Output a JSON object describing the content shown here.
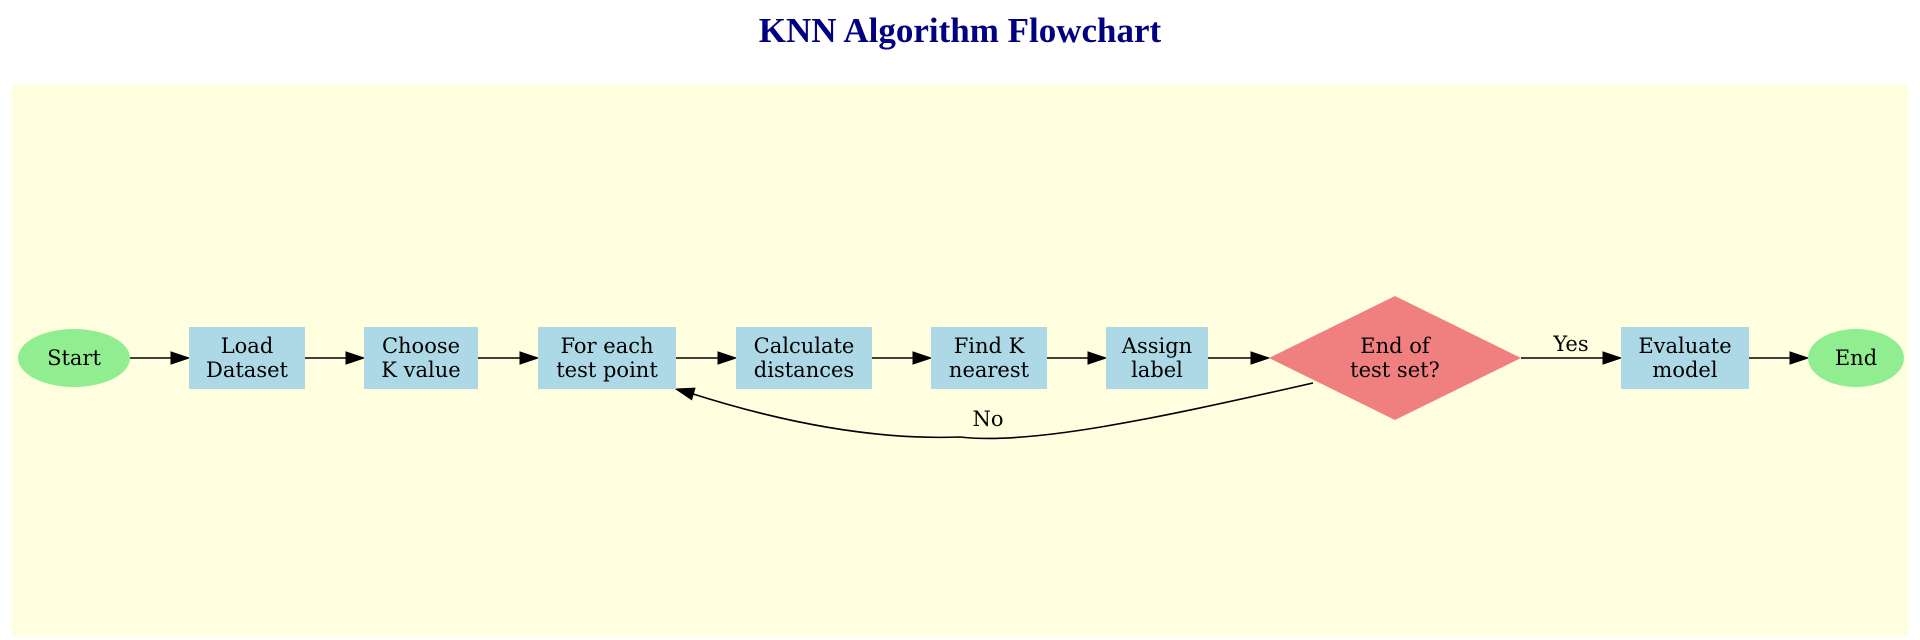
{
  "title": "KNN Algorithm Flowchart",
  "colors": {
    "title": "#000080",
    "cluster_bg": "#ffffe0",
    "terminal": "#90ee90",
    "process": "#add8e6",
    "decision": "#f08080",
    "edge": "#000000"
  },
  "nodes": {
    "start": {
      "label": [
        "Start"
      ],
      "shape": "ellipse"
    },
    "load": {
      "label": [
        "Load",
        "Dataset"
      ],
      "shape": "box"
    },
    "choose": {
      "label": [
        "Choose",
        "K value"
      ],
      "shape": "box"
    },
    "foreach": {
      "label": [
        "For each",
        "test point"
      ],
      "shape": "box"
    },
    "calc": {
      "label": [
        "Calculate",
        "distances"
      ],
      "shape": "box"
    },
    "find": {
      "label": [
        "Find K",
        "nearest"
      ],
      "shape": "box"
    },
    "assign": {
      "label": [
        "Assign",
        "label"
      ],
      "shape": "box"
    },
    "decision": {
      "label": [
        "End of",
        "test set?"
      ],
      "shape": "diamond"
    },
    "evaluate": {
      "label": [
        "Evaluate",
        "model"
      ],
      "shape": "box"
    },
    "end": {
      "label": [
        "End"
      ],
      "shape": "ellipse"
    }
  },
  "edges": [
    {
      "from": "start",
      "to": "load",
      "label": ""
    },
    {
      "from": "load",
      "to": "choose",
      "label": ""
    },
    {
      "from": "choose",
      "to": "foreach",
      "label": ""
    },
    {
      "from": "foreach",
      "to": "calc",
      "label": ""
    },
    {
      "from": "calc",
      "to": "find",
      "label": ""
    },
    {
      "from": "find",
      "to": "assign",
      "label": ""
    },
    {
      "from": "assign",
      "to": "decision",
      "label": ""
    },
    {
      "from": "decision",
      "to": "evaluate",
      "label": "Yes"
    },
    {
      "from": "evaluate",
      "to": "end",
      "label": ""
    },
    {
      "from": "decision",
      "to": "foreach",
      "label": "No"
    }
  ]
}
